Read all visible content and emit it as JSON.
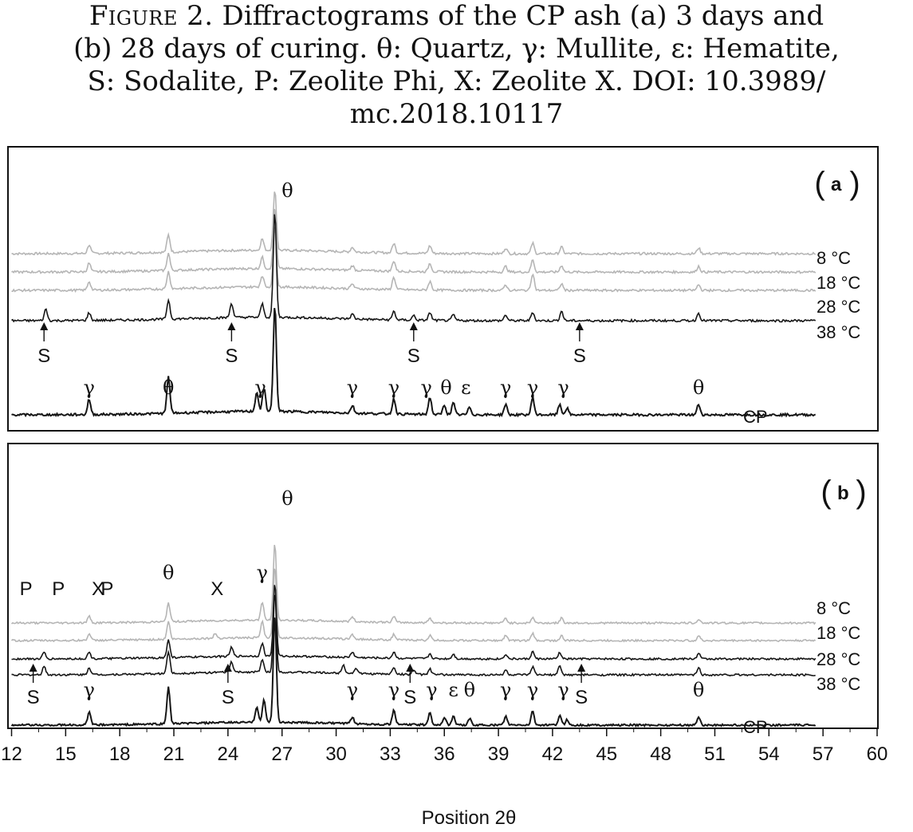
{
  "caption": {
    "figure_label": "Figure 2.",
    "line1": "Diffractograms of the CP ash (a) 3 days and",
    "line2": "(b) 28 days of curing. θ: Quartz, γ: Mullite, ε: Hematite,",
    "line3": "S: Sodalite, P: Zeolite Phi, X: Zeolite X. DOI: 10.3989/",
    "line4": "mc.2018.10117"
  },
  "chart_data": {
    "type": "line",
    "xlabel": "Position 2θ",
    "xlim": [
      12,
      60
    ],
    "x_ticks": [
      "12",
      "15",
      "18",
      "21",
      "24",
      "27",
      "30",
      "33",
      "36",
      "39",
      "42",
      "45",
      "48",
      "51",
      "54",
      "57",
      "60"
    ],
    "colors": {
      "low_temp": "#b5b5b5",
      "high_temp": "#161616",
      "cp": "#161616"
    },
    "panels": [
      {
        "label": "a",
        "series": [
          {
            "name": "8 °C",
            "color": "low_temp",
            "peaks": [
              [
                16.3,
                0.45
              ],
              [
                20.7,
                0.9
              ],
              [
                25.9,
                0.6
              ],
              [
                26.6,
                3.2
              ],
              [
                30.9,
                0.25
              ],
              [
                33.2,
                0.5
              ],
              [
                35.2,
                0.4
              ],
              [
                39.4,
                0.3
              ],
              [
                40.9,
                0.55
              ],
              [
                42.5,
                0.35
              ],
              [
                50.1,
                0.3
              ]
            ]
          },
          {
            "name": "18 °C",
            "color": "low_temp",
            "peaks": [
              [
                16.3,
                0.45
              ],
              [
                20.7,
                0.9
              ],
              [
                25.9,
                0.6
              ],
              [
                26.6,
                3.2
              ],
              [
                30.9,
                0.25
              ],
              [
                33.2,
                0.55
              ],
              [
                35.2,
                0.45
              ],
              [
                39.4,
                0.3
              ],
              [
                40.9,
                0.65
              ],
              [
                42.5,
                0.35
              ],
              [
                50.1,
                0.3
              ]
            ]
          },
          {
            "name": "28 °C",
            "color": "low_temp",
            "peaks": [
              [
                16.3,
                0.45
              ],
              [
                20.7,
                0.9
              ],
              [
                25.9,
                0.6
              ],
              [
                26.6,
                3.2
              ],
              [
                30.9,
                0.25
              ],
              [
                33.2,
                0.65
              ],
              [
                35.2,
                0.45
              ],
              [
                39.4,
                0.3
              ],
              [
                40.9,
                0.9
              ],
              [
                42.5,
                0.35
              ],
              [
                50.1,
                0.3
              ]
            ]
          },
          {
            "name": "38 °C",
            "color": "high_temp",
            "peaks": [
              [
                13.9,
                0.6
              ],
              [
                16.3,
                0.4
              ],
              [
                20.7,
                1.0
              ],
              [
                24.2,
                0.75
              ],
              [
                25.9,
                0.7
              ],
              [
                26.6,
                5.5
              ],
              [
                30.9,
                0.25
              ],
              [
                33.2,
                0.45
              ],
              [
                34.3,
                0.25
              ],
              [
                35.2,
                0.4
              ],
              [
                36.5,
                0.3
              ],
              [
                39.4,
                0.3
              ],
              [
                40.9,
                0.45
              ],
              [
                42.5,
                0.5
              ],
              [
                50.1,
                0.4
              ]
            ]
          },
          {
            "name": "CP",
            "color": "cp",
            "peaks": [
              [
                16.3,
                0.8
              ],
              [
                20.7,
                1.9
              ],
              [
                25.6,
                1.0
              ],
              [
                26.0,
                1.2
              ],
              [
                26.6,
                5.6
              ],
              [
                30.9,
                0.4
              ],
              [
                33.2,
                0.8
              ],
              [
                35.2,
                0.9
              ],
              [
                36.0,
                0.5
              ],
              [
                36.5,
                0.6
              ],
              [
                37.4,
                0.4
              ],
              [
                39.4,
                0.55
              ],
              [
                40.9,
                0.9
              ],
              [
                42.4,
                0.55
              ],
              [
                42.8,
                0.35
              ],
              [
                50.1,
                0.55
              ]
            ]
          }
        ],
        "annotations": [
          {
            "text": "θ",
            "x": 27.3,
            "row": "top",
            "greek": true
          },
          {
            "text": "S",
            "x": 13.8,
            "row": "arrow"
          },
          {
            "text": "S",
            "x": 24.2,
            "row": "arrow"
          },
          {
            "text": "S",
            "x": 34.3,
            "row": "arrow"
          },
          {
            "text": "S",
            "x": 43.5,
            "row": "arrow"
          },
          {
            "text": "γ",
            "x": 16.3,
            "row": "cp",
            "greek": true
          },
          {
            "text": "θ",
            "x": 20.7,
            "row": "cp",
            "greek": true
          },
          {
            "text": "γ",
            "x": 25.8,
            "row": "cp",
            "greek": true
          },
          {
            "text": "γ",
            "x": 30.9,
            "row": "cp",
            "greek": true
          },
          {
            "text": "γ",
            "x": 33.2,
            "row": "cp",
            "greek": true
          },
          {
            "text": "γ",
            "x": 35.0,
            "row": "cp",
            "greek": true
          },
          {
            "text": "θ",
            "x": 36.1,
            "row": "cp",
            "greek": true
          },
          {
            "text": "ε",
            "x": 37.2,
            "row": "cp",
            "greek": true
          },
          {
            "text": "γ",
            "x": 39.4,
            "row": "cp",
            "greek": true
          },
          {
            "text": "γ",
            "x": 40.9,
            "row": "cp",
            "greek": true
          },
          {
            "text": "γ",
            "x": 42.6,
            "row": "cp",
            "greek": true
          },
          {
            "text": "θ",
            "x": 50.1,
            "row": "cp",
            "greek": true
          }
        ]
      },
      {
        "label": "b",
        "series": [
          {
            "name": "8 °C",
            "color": "low_temp",
            "peaks": [
              [
                16.3,
                0.4
              ],
              [
                20.7,
                1.2
              ],
              [
                25.9,
                1.1
              ],
              [
                26.6,
                4.9
              ],
              [
                30.9,
                0.3
              ],
              [
                33.2,
                0.35
              ],
              [
                35.2,
                0.3
              ],
              [
                39.4,
                0.3
              ],
              [
                40.9,
                0.35
              ],
              [
                42.5,
                0.3
              ],
              [
                50.1,
                0.25
              ]
            ]
          },
          {
            "name": "18 °C",
            "color": "low_temp",
            "peaks": [
              [
                16.3,
                0.4
              ],
              [
                20.7,
                1.1
              ],
              [
                23.3,
                0.3
              ],
              [
                25.9,
                1.0
              ],
              [
                26.6,
                4.5
              ],
              [
                30.9,
                0.3
              ],
              [
                33.2,
                0.35
              ],
              [
                35.2,
                0.3
              ],
              [
                39.4,
                0.35
              ],
              [
                40.9,
                0.45
              ],
              [
                42.5,
                0.3
              ],
              [
                50.1,
                0.3
              ]
            ]
          },
          {
            "name": "28 °C",
            "color": "high_temp",
            "peaks": [
              [
                13.8,
                0.4
              ],
              [
                16.3,
                0.4
              ],
              [
                20.7,
                1.1
              ],
              [
                24.2,
                0.55
              ],
              [
                25.9,
                0.8
              ],
              [
                26.6,
                4.6
              ],
              [
                30.9,
                0.35
              ],
              [
                33.2,
                0.4
              ],
              [
                35.2,
                0.3
              ],
              [
                36.5,
                0.3
              ],
              [
                39.4,
                0.3
              ],
              [
                40.9,
                0.45
              ],
              [
                42.4,
                0.4
              ],
              [
                50.1,
                0.35
              ]
            ]
          },
          {
            "name": "38 °C",
            "color": "high_temp",
            "peaks": [
              [
                13.8,
                0.55
              ],
              [
                16.3,
                0.45
              ],
              [
                20.7,
                1.4
              ],
              [
                24.2,
                0.65
              ],
              [
                25.9,
                0.75
              ],
              [
                26.6,
                5.0
              ],
              [
                30.4,
                0.55
              ],
              [
                31.1,
                0.35
              ],
              [
                33.2,
                0.45
              ],
              [
                34.3,
                0.3
              ],
              [
                35.2,
                0.35
              ],
              [
                39.4,
                0.3
              ],
              [
                40.9,
                0.5
              ],
              [
                42.4,
                0.55
              ],
              [
                50.1,
                0.45
              ]
            ]
          },
          {
            "name": "CP",
            "color": "cp",
            "peaks": [
              [
                16.3,
                0.8
              ],
              [
                20.7,
                2.3
              ],
              [
                25.6,
                1.0
              ],
              [
                26.0,
                1.4
              ],
              [
                26.6,
                6.8
              ],
              [
                30.9,
                0.4
              ],
              [
                33.2,
                0.9
              ],
              [
                35.2,
                0.8
              ],
              [
                36.0,
                0.5
              ],
              [
                36.5,
                0.55
              ],
              [
                37.4,
                0.4
              ],
              [
                39.4,
                0.55
              ],
              [
                40.9,
                0.9
              ],
              [
                42.4,
                0.6
              ],
              [
                42.8,
                0.35
              ],
              [
                50.1,
                0.55
              ]
            ]
          }
        ],
        "annotations": [
          {
            "text": "θ",
            "x": 27.3,
            "row": "top",
            "greek": true
          },
          {
            "text": "P",
            "x": 12.8,
            "row": "left"
          },
          {
            "text": "P",
            "x": 14.6,
            "row": "left"
          },
          {
            "text": "X",
            "x": 16.8,
            "row": "left"
          },
          {
            "text": "P",
            "x": 17.3,
            "row": "left"
          },
          {
            "text": "θ",
            "x": 20.7,
            "row": "mid",
            "greek": true
          },
          {
            "text": "X",
            "x": 23.4,
            "row": "left"
          },
          {
            "text": "γ",
            "x": 25.9,
            "row": "mid",
            "greek": true
          },
          {
            "text": "S",
            "x": 13.2,
            "row": "arrow"
          },
          {
            "text": "S",
            "x": 24.0,
            "row": "arrow"
          },
          {
            "text": "S",
            "x": 34.1,
            "row": "arrow"
          },
          {
            "text": "S",
            "x": 43.6,
            "row": "arrow"
          },
          {
            "text": "γ",
            "x": 16.3,
            "row": "cp",
            "greek": true
          },
          {
            "text": "γ",
            "x": 30.9,
            "row": "cp",
            "greek": true
          },
          {
            "text": "γ",
            "x": 33.2,
            "row": "cp",
            "greek": true
          },
          {
            "text": "γ",
            "x": 35.3,
            "row": "cp",
            "greek": true
          },
          {
            "text": "ε",
            "x": 36.5,
            "row": "cp",
            "greek": true
          },
          {
            "text": "θ",
            "x": 37.4,
            "row": "cp",
            "greek": true
          },
          {
            "text": "γ",
            "x": 39.4,
            "row": "cp",
            "greek": true
          },
          {
            "text": "γ",
            "x": 40.9,
            "row": "cp",
            "greek": true
          },
          {
            "text": "γ",
            "x": 42.6,
            "row": "cp",
            "greek": true
          },
          {
            "text": "θ",
            "x": 50.1,
            "row": "cp",
            "greek": true
          }
        ]
      }
    ]
  }
}
